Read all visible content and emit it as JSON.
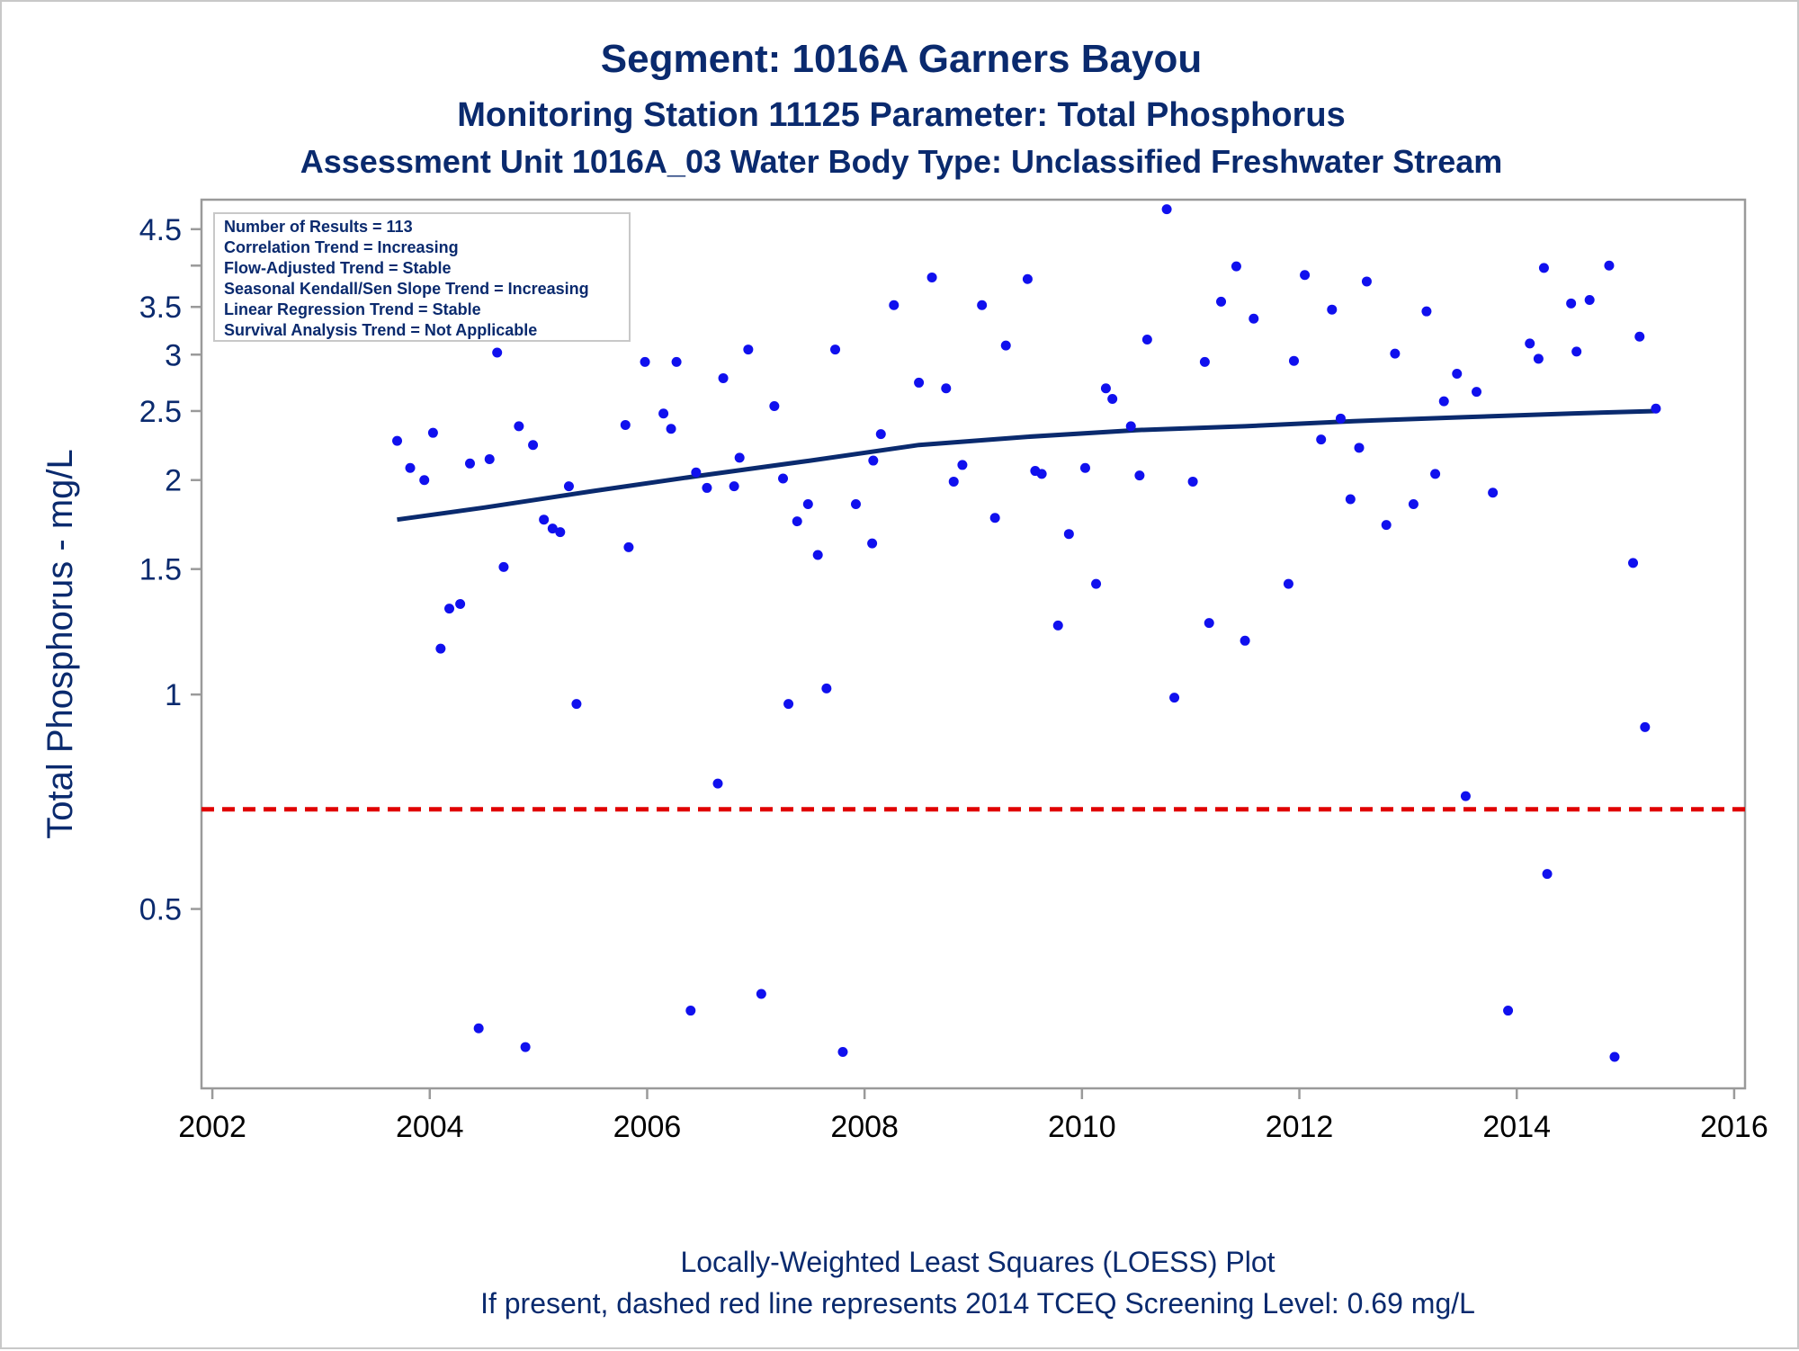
{
  "titles": {
    "line1": "Segment: 1016A  Garners Bayou",
    "line2": "Monitoring Station 11125 Parameter: Total Phosphorus",
    "line3": "Assessment Unit 1016A_03   Water Body Type: Unclassified Freshwater Stream"
  },
  "stats": [
    "Number of Results = 113",
    "Correlation Trend = Increasing",
    "Flow-Adjusted Trend = Stable",
    "Seasonal Kendall/Sen Slope Trend = Increasing",
    "Linear Regression Trend = Stable",
    "Survival Analysis Trend = Not Applicable"
  ],
  "footnotes": {
    "line1": "Locally-Weighted Least Squares (LOESS) Plot",
    "line2": "If present, dashed red line represents 2014 TCEQ Screening Level: 0.69 mg/L"
  },
  "colors": {
    "title": "#0a2a6e",
    "points": "#1010ee",
    "loess": "#0a2a6e",
    "screening": "#e00000",
    "frame": "#9a9a9a"
  },
  "chart_data": {
    "type": "scatter",
    "title": "Segment: 1016A  Garners Bayou",
    "xlabel": "",
    "ylabel": "Total Phosphorus - mg/L",
    "x_scale": "linear",
    "y_scale": "log",
    "xlim": [
      2001.9,
      2016.1
    ],
    "ylim": [
      0.28,
      4.95
    ],
    "x_ticks": [
      "2002",
      "2004",
      "2006",
      "2008",
      "2010",
      "2012",
      "2014",
      "2016"
    ],
    "y_ticks": [
      "0.5",
      "1",
      "1.5",
      "2",
      "2.5",
      "3",
      "3.5",
      "4.5"
    ],
    "minor_y_ticks": [
      4
    ],
    "grid": false,
    "legend": "none",
    "screening_level": 0.69,
    "points": [
      [
        2003.7,
        2.27
      ],
      [
        2003.82,
        2.08
      ],
      [
        2003.87,
        3.22
      ],
      [
        2003.95,
        2.0
      ],
      [
        2004.03,
        2.33
      ],
      [
        2004.1,
        1.16
      ],
      [
        2004.18,
        1.32
      ],
      [
        2004.28,
        1.34
      ],
      [
        2004.37,
        2.11
      ],
      [
        2004.45,
        0.34
      ],
      [
        2004.55,
        2.14
      ],
      [
        2004.62,
        3.02
      ],
      [
        2004.68,
        1.51
      ],
      [
        2004.82,
        2.38
      ],
      [
        2004.88,
        0.32
      ],
      [
        2004.95,
        2.24
      ],
      [
        2005.05,
        1.76
      ],
      [
        2005.13,
        1.71
      ],
      [
        2005.2,
        1.69
      ],
      [
        2005.28,
        1.96
      ],
      [
        2005.35,
        0.97
      ],
      [
        2005.72,
        3.2
      ],
      [
        2005.8,
        2.39
      ],
      [
        2005.83,
        1.61
      ],
      [
        2005.98,
        2.93
      ],
      [
        2006.15,
        2.48
      ],
      [
        2006.22,
        2.36
      ],
      [
        2006.27,
        2.93
      ],
      [
        2006.4,
        0.36
      ],
      [
        2006.45,
        2.05
      ],
      [
        2006.55,
        1.95
      ],
      [
        2006.65,
        0.75
      ],
      [
        2006.7,
        2.78
      ],
      [
        2006.8,
        1.96
      ],
      [
        2006.85,
        2.15
      ],
      [
        2006.93,
        3.05
      ],
      [
        2007.05,
        0.38
      ],
      [
        2007.17,
        2.54
      ],
      [
        2007.25,
        2.01
      ],
      [
        2007.3,
        0.97
      ],
      [
        2007.38,
        1.75
      ],
      [
        2007.48,
        1.85
      ],
      [
        2007.57,
        1.57
      ],
      [
        2007.65,
        1.02
      ],
      [
        2007.73,
        3.05
      ],
      [
        2007.8,
        0.315
      ],
      [
        2007.92,
        1.85
      ],
      [
        2008.07,
        1.63
      ],
      [
        2008.08,
        2.13
      ],
      [
        2008.15,
        2.32
      ],
      [
        2008.27,
        3.52
      ],
      [
        2008.5,
        2.74
      ],
      [
        2008.62,
        3.85
      ],
      [
        2008.75,
        2.69
      ],
      [
        2008.82,
        1.99
      ],
      [
        2008.9,
        2.1
      ],
      [
        2009.08,
        3.52
      ],
      [
        2009.2,
        1.77
      ],
      [
        2009.3,
        3.09
      ],
      [
        2009.5,
        3.83
      ],
      [
        2009.57,
        2.06
      ],
      [
        2009.63,
        2.04
      ],
      [
        2009.78,
        1.25
      ],
      [
        2009.88,
        1.68
      ],
      [
        2010.03,
        2.08
      ],
      [
        2010.13,
        1.43
      ],
      [
        2010.22,
        2.69
      ],
      [
        2010.28,
        2.6
      ],
      [
        2010.45,
        2.38
      ],
      [
        2010.53,
        2.03
      ],
      [
        2010.6,
        3.15
      ],
      [
        2010.78,
        4.8
      ],
      [
        2010.85,
        0.99
      ],
      [
        2011.02,
        1.99
      ],
      [
        2011.13,
        2.93
      ],
      [
        2011.17,
        1.26
      ],
      [
        2011.28,
        3.56
      ],
      [
        2011.42,
        3.99
      ],
      [
        2011.5,
        1.19
      ],
      [
        2011.58,
        3.37
      ],
      [
        2011.9,
        1.43
      ],
      [
        2011.95,
        2.94
      ],
      [
        2012.05,
        3.88
      ],
      [
        2012.2,
        2.28
      ],
      [
        2012.3,
        3.47
      ],
      [
        2012.38,
        2.44
      ],
      [
        2012.47,
        1.88
      ],
      [
        2012.55,
        2.22
      ],
      [
        2012.62,
        3.8
      ],
      [
        2012.8,
        1.73
      ],
      [
        2012.88,
        3.01
      ],
      [
        2013.05,
        1.85
      ],
      [
        2013.17,
        3.45
      ],
      [
        2013.25,
        2.04
      ],
      [
        2013.33,
        2.58
      ],
      [
        2013.45,
        2.82
      ],
      [
        2013.53,
        0.72
      ],
      [
        2013.63,
        2.66
      ],
      [
        2013.78,
        1.92
      ],
      [
        2013.92,
        0.36
      ],
      [
        2014.12,
        3.11
      ],
      [
        2014.2,
        2.96
      ],
      [
        2014.25,
        3.97
      ],
      [
        2014.28,
        0.56
      ],
      [
        2014.5,
        3.54
      ],
      [
        2014.55,
        3.03
      ],
      [
        2014.67,
        3.58
      ],
      [
        2014.85,
        4.0
      ],
      [
        2014.9,
        0.31
      ],
      [
        2015.07,
        1.53
      ],
      [
        2015.13,
        3.18
      ],
      [
        2015.18,
        0.9
      ],
      [
        2015.28,
        2.52
      ]
    ],
    "loess": {
      "x": [
        2003.7,
        2004.5,
        2005.5,
        2006.5,
        2007.5,
        2008.5,
        2009.5,
        2010.5,
        2011.5,
        2012.5,
        2013.5,
        2014.5,
        2015.28
      ],
      "y": [
        1.76,
        1.83,
        1.93,
        2.03,
        2.13,
        2.24,
        2.3,
        2.35,
        2.38,
        2.42,
        2.45,
        2.48,
        2.5
      ]
    }
  }
}
